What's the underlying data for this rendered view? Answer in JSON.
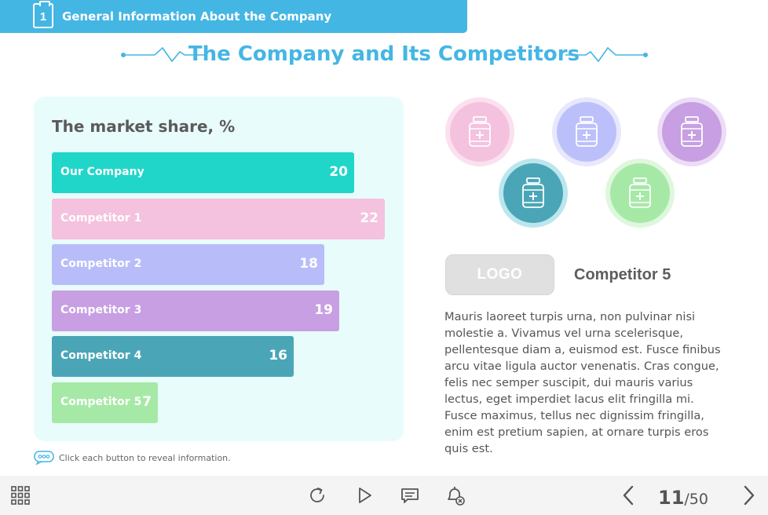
{
  "header": {
    "section_number": "1",
    "section_title": "General Information About the Company"
  },
  "page": {
    "title": "The Company and Its Competitors"
  },
  "chart_data": {
    "type": "bar",
    "orientation": "horizontal",
    "title": "The market share, %",
    "xlim": [
      0,
      22
    ],
    "categories": [
      "Our Company",
      "Competitor 1",
      "Competitor 2",
      "Competitor 3",
      "Competitor 4",
      "Competitor 5"
    ],
    "values": [
      20,
      22,
      18,
      19,
      16,
      7
    ],
    "colors": [
      "#1fd6c9",
      "#f4c2de",
      "#b8bdfa",
      "#c79fe2",
      "#4aa6b7",
      "#a6e9a6"
    ]
  },
  "hint": {
    "text": "Click each button to reveal information."
  },
  "competitor_buttons": [
    {
      "icon": "medicine-bottle-icon",
      "ring": "#fbe0ef",
      "fill": "#f4c2de"
    },
    {
      "icon": "medicine-bottle-icon",
      "ring": "#e7e8fd",
      "fill": "#bcc0fa"
    },
    {
      "icon": "medicine-bottle-icon",
      "ring": "#ecdcf6",
      "fill": "#c79fe2"
    },
    {
      "icon": "medicine-bottle-icon",
      "ring": "#bce6ee",
      "fill": "#4aa6b7"
    },
    {
      "icon": "medicine-bottle-icon",
      "ring": "#def7de",
      "fill": "#a6e9a6"
    }
  ],
  "detail": {
    "logo_text": "LOGO",
    "name": "Competitor 5",
    "description": "Mauris laoreet turpis urna, non pulvinar nisi molestie a. Vivamus vel urna scelerisque, pellentesque diam a, euismod est. Fusce finibus arcu vitae ligula auctor venenatis. Cras congue, felis nec semper suscipit, dui mauris varius lectus, eget imperdiet lacus elit fringilla mi. Fusce maximus, tellus nec dignissim fringilla, enim est pretium sapien, at ornare turpis eros quis est."
  },
  "footer": {
    "icons": [
      "menu-grid-icon",
      "replay-icon",
      "play-icon",
      "comment-icon",
      "notification-off-icon",
      "previous-icon",
      "next-icon"
    ],
    "current_page": "11",
    "total_pages": "/50"
  }
}
